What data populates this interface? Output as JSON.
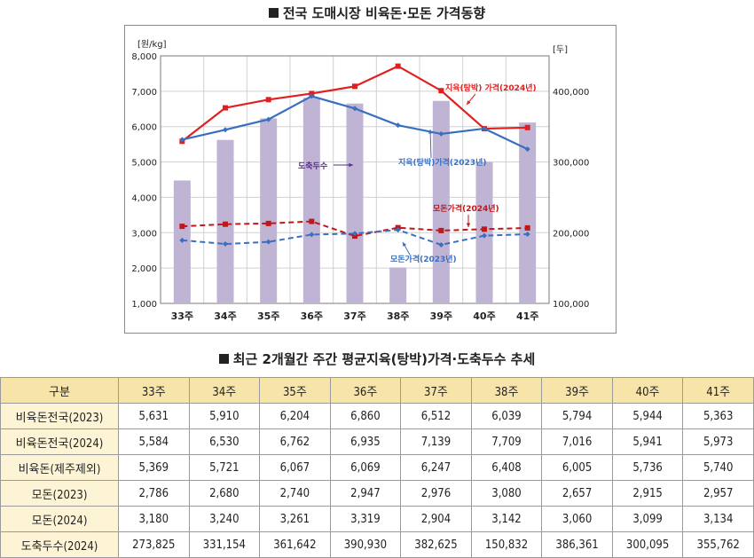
{
  "chart_title": "전국 도매시장 비육돈·모돈 가격동향",
  "table_title": "최근 2개월간 주간 평균지육(탕박)가격·도축두수 추세",
  "chart_data": {
    "type": "bar+line",
    "categories": [
      "33주",
      "34주",
      "35주",
      "36주",
      "37주",
      "38주",
      "39주",
      "40주",
      "41주"
    ],
    "left_axis": {
      "unit": "[원/kg]",
      "range": [
        1000,
        8000
      ],
      "ticks": [
        "1,000",
        "2,000",
        "3,000",
        "4,000",
        "5,000",
        "6,000",
        "7,000",
        "8,000"
      ]
    },
    "right_axis": {
      "unit": "[두]",
      "range": [
        100000,
        450000
      ],
      "ticks": [
        "100,000",
        "200,000",
        "300,000",
        "400,000"
      ]
    },
    "bars": {
      "name": "도축두수",
      "axis": "right",
      "color": "#bfb4d4",
      "values": [
        273825,
        331154,
        361642,
        390930,
        382625,
        150832,
        386361,
        300095,
        355762
      ]
    },
    "series": [
      {
        "name": "지육(탕박) 가격(2024년)",
        "axis": "left",
        "color": "#e02020",
        "dashed": false,
        "marker": "square",
        "values": [
          5584,
          6530,
          6762,
          6935,
          7139,
          7709,
          7016,
          5941,
          5973
        ]
      },
      {
        "name": "지육(탕박)가격(2023년)",
        "axis": "left",
        "color": "#3a6fc0",
        "dashed": false,
        "marker": "diamond",
        "values": [
          5631,
          5910,
          6204,
          6860,
          6512,
          6039,
          5794,
          5944,
          5363
        ]
      },
      {
        "name": "모돈가격(2024년)",
        "axis": "left",
        "color": "#c01818",
        "dashed": true,
        "marker": "square",
        "values": [
          3180,
          3240,
          3261,
          3319,
          2904,
          3142,
          3060,
          3099,
          3134
        ]
      },
      {
        "name": "모돈가격(2023년)",
        "axis": "left",
        "color": "#3a6fc0",
        "dashed": true,
        "marker": "diamond",
        "values": [
          2786,
          2680,
          2740,
          2947,
          2976,
          3080,
          2657,
          2915,
          2957
        ]
      }
    ],
    "annotations": {
      "label_2024_price": "지육(탕박) 가격(2024년)",
      "label_2023_price": "지육(탕박)가격(2023년)",
      "label_slaughter": "도축두수",
      "label_2024_sow": "모돈가격(2024년)",
      "label_2023_sow": "모돈가격(2023년)"
    },
    "grid": true,
    "legend": "inline annotations"
  },
  "table": {
    "headers": [
      "구분",
      "33주",
      "34주",
      "35주",
      "36주",
      "37주",
      "38주",
      "39주",
      "40주",
      "41주"
    ],
    "rows": [
      {
        "label": "비육돈전국(2023)",
        "values": [
          "5,631",
          "5,910",
          "6,204",
          "6,860",
          "6,512",
          "6,039",
          "5,794",
          "5,944",
          "5,363"
        ]
      },
      {
        "label": "비육돈전국(2024)",
        "values": [
          "5,584",
          "6,530",
          "6,762",
          "6,935",
          "7,139",
          "7,709",
          "7,016",
          "5,941",
          "5,973"
        ]
      },
      {
        "label": "비육돈(제주제외)",
        "values": [
          "5,369",
          "5,721",
          "6,067",
          "6,069",
          "6,247",
          "6,408",
          "6,005",
          "5,736",
          "5,740"
        ]
      },
      {
        "label": "모돈(2023)",
        "values": [
          "2,786",
          "2,680",
          "2,740",
          "2,947",
          "2,976",
          "3,080",
          "2,657",
          "2,915",
          "2,957"
        ]
      },
      {
        "label": "모돈(2024)",
        "values": [
          "3,180",
          "3,240",
          "3,261",
          "3,319",
          "2,904",
          "3,142",
          "3,060",
          "3,099",
          "3,134"
        ]
      },
      {
        "label": "도축두수(2024)",
        "values": [
          "273,825",
          "331,154",
          "361,642",
          "390,930",
          "382,625",
          "150,832",
          "386,361",
          "300,095",
          "355,762"
        ]
      }
    ]
  }
}
